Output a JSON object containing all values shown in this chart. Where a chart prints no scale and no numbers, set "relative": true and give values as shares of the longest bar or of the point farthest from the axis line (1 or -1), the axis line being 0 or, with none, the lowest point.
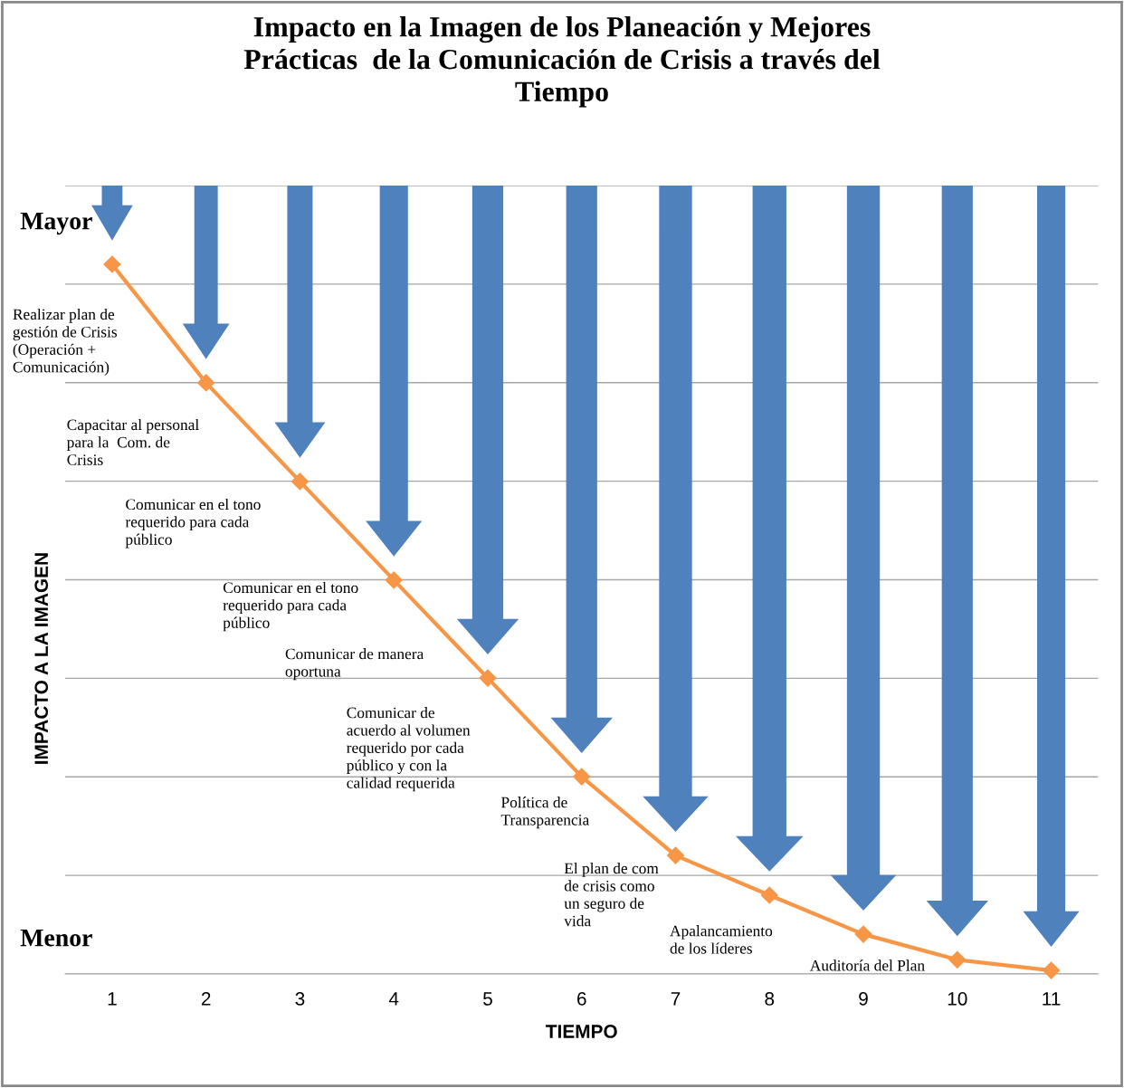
{
  "chart_data": {
    "type": "line",
    "title": "Impacto en la Imagen de los Planeación y Mejores\nPrácticas  de la Comunicación de Crisis a través del\nTiempo",
    "xlabel": "TIEMPO",
    "ylabel": "IMPACTO A LA IMAGEN",
    "categories": [
      "1",
      "2",
      "3",
      "4",
      "5",
      "6",
      "7",
      "8",
      "9",
      "10",
      "11"
    ],
    "series": [
      {
        "color": "#f79646",
        "values": [
          1,
          0.833,
          0.694,
          0.555,
          0.417,
          0.278,
          0.167,
          0.111,
          0.056,
          0.02,
          0.005
        ]
      }
    ],
    "relative": true,
    "marker": "diamond",
    "line_style": "solid",
    "grid": "y",
    "tick_labels": "x",
    "annotations": [
      "Mayor",
      "Menor",
      "Realizar plan de\ngestión de Crisis\n(Operación +\nComunicación)",
      "Capacitar al personal\npara la  Com. de\nCrisis",
      "Comunicar en el tono\nrequerido para cada\npúblico",
      "Comunicar en el tono\nrequerido para cada\npúblico",
      "Comunicar de manera\noportuna",
      "Comunicar de\nacuerdo al volumen\nrequerido por cada\npúblico y con la\ncalidad requerida",
      "Política de\nTransparencia",
      "El plan de com\nde crisis como\nun seguro de\nvida",
      "Apalancamiento\nde los líderes",
      "Auditoría del Plan"
    ]
  }
}
